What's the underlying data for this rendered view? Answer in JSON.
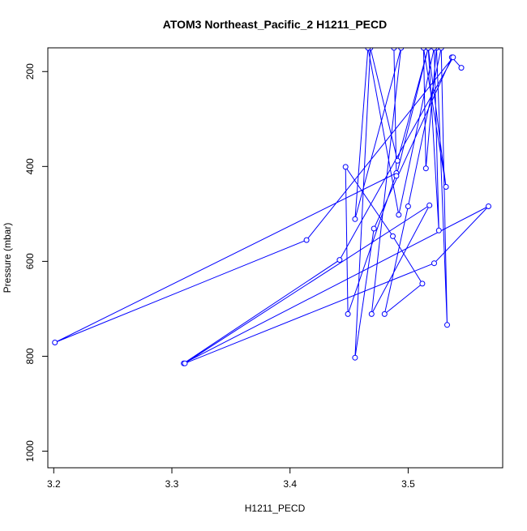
{
  "chart_data": {
    "type": "line",
    "title": "ATOM3 Northeast_Pacific_2 H1211_PECD",
    "xlabel": "H1211_PECD",
    "ylabel": "Pressure (mbar)",
    "xlim": [
      3.195,
      3.58
    ],
    "ylim": [
      1035,
      150
    ],
    "y_inverted": true,
    "x_ticks": [
      3.2,
      3.3,
      3.4,
      3.5
    ],
    "x_tick_labels": [
      "3.2",
      "3.3",
      "3.4",
      "3.5"
    ],
    "y_ticks": [
      200,
      400,
      600,
      800,
      1000
    ],
    "y_tick_labels": [
      "200",
      "400",
      "600",
      "800",
      "1000"
    ],
    "series_color": "#0000ff",
    "marker": "open-circle",
    "grid": false,
    "legend": "none",
    "series": [
      {
        "points": [
          {
            "x": 3.545,
            "y": 192
          },
          {
            "x": 3.537,
            "y": 170
          },
          {
            "x": 3.471,
            "y": 531
          },
          {
            "x": 3.455,
            "y": 803
          },
          {
            "x": 3.468,
            "y": 150
          },
          {
            "x": 3.491,
            "y": 388
          },
          {
            "x": 3.517,
            "y": 150
          },
          {
            "x": 3.532,
            "y": 443
          },
          {
            "x": 3.513,
            "y": 150
          },
          {
            "x": 3.515,
            "y": 404
          },
          {
            "x": 3.524,
            "y": 150
          },
          {
            "x": 3.533,
            "y": 734
          },
          {
            "x": 3.528,
            "y": 150
          },
          {
            "x": 3.5,
            "y": 484
          },
          {
            "x": 3.48,
            "y": 711
          },
          {
            "x": 3.512,
            "y": 647
          },
          {
            "x": 3.487,
            "y": 547
          },
          {
            "x": 3.447,
            "y": 401
          },
          {
            "x": 3.449,
            "y": 711
          },
          {
            "x": 3.49,
            "y": 414
          },
          {
            "x": 3.201,
            "y": 771
          },
          {
            "x": 3.414,
            "y": 555
          },
          {
            "x": 3.538,
            "y": 170
          },
          {
            "x": 3.442,
            "y": 597
          },
          {
            "x": 3.31,
            "y": 815
          },
          {
            "x": 3.568,
            "y": 484
          },
          {
            "x": 3.522,
            "y": 604
          },
          {
            "x": 3.311,
            "y": 815
          },
          {
            "x": 3.518,
            "y": 482
          },
          {
            "x": 3.469,
            "y": 711
          },
          {
            "x": 3.494,
            "y": 150
          },
          {
            "x": 3.455,
            "y": 511
          },
          {
            "x": 3.466,
            "y": 150
          },
          {
            "x": 3.492,
            "y": 502
          },
          {
            "x": 3.522,
            "y": 150
          },
          {
            "x": 3.526,
            "y": 535
          },
          {
            "x": 3.517,
            "y": 150
          },
          {
            "x": 3.49,
            "y": 420
          },
          {
            "x": 3.488,
            "y": 150
          }
        ]
      }
    ]
  }
}
